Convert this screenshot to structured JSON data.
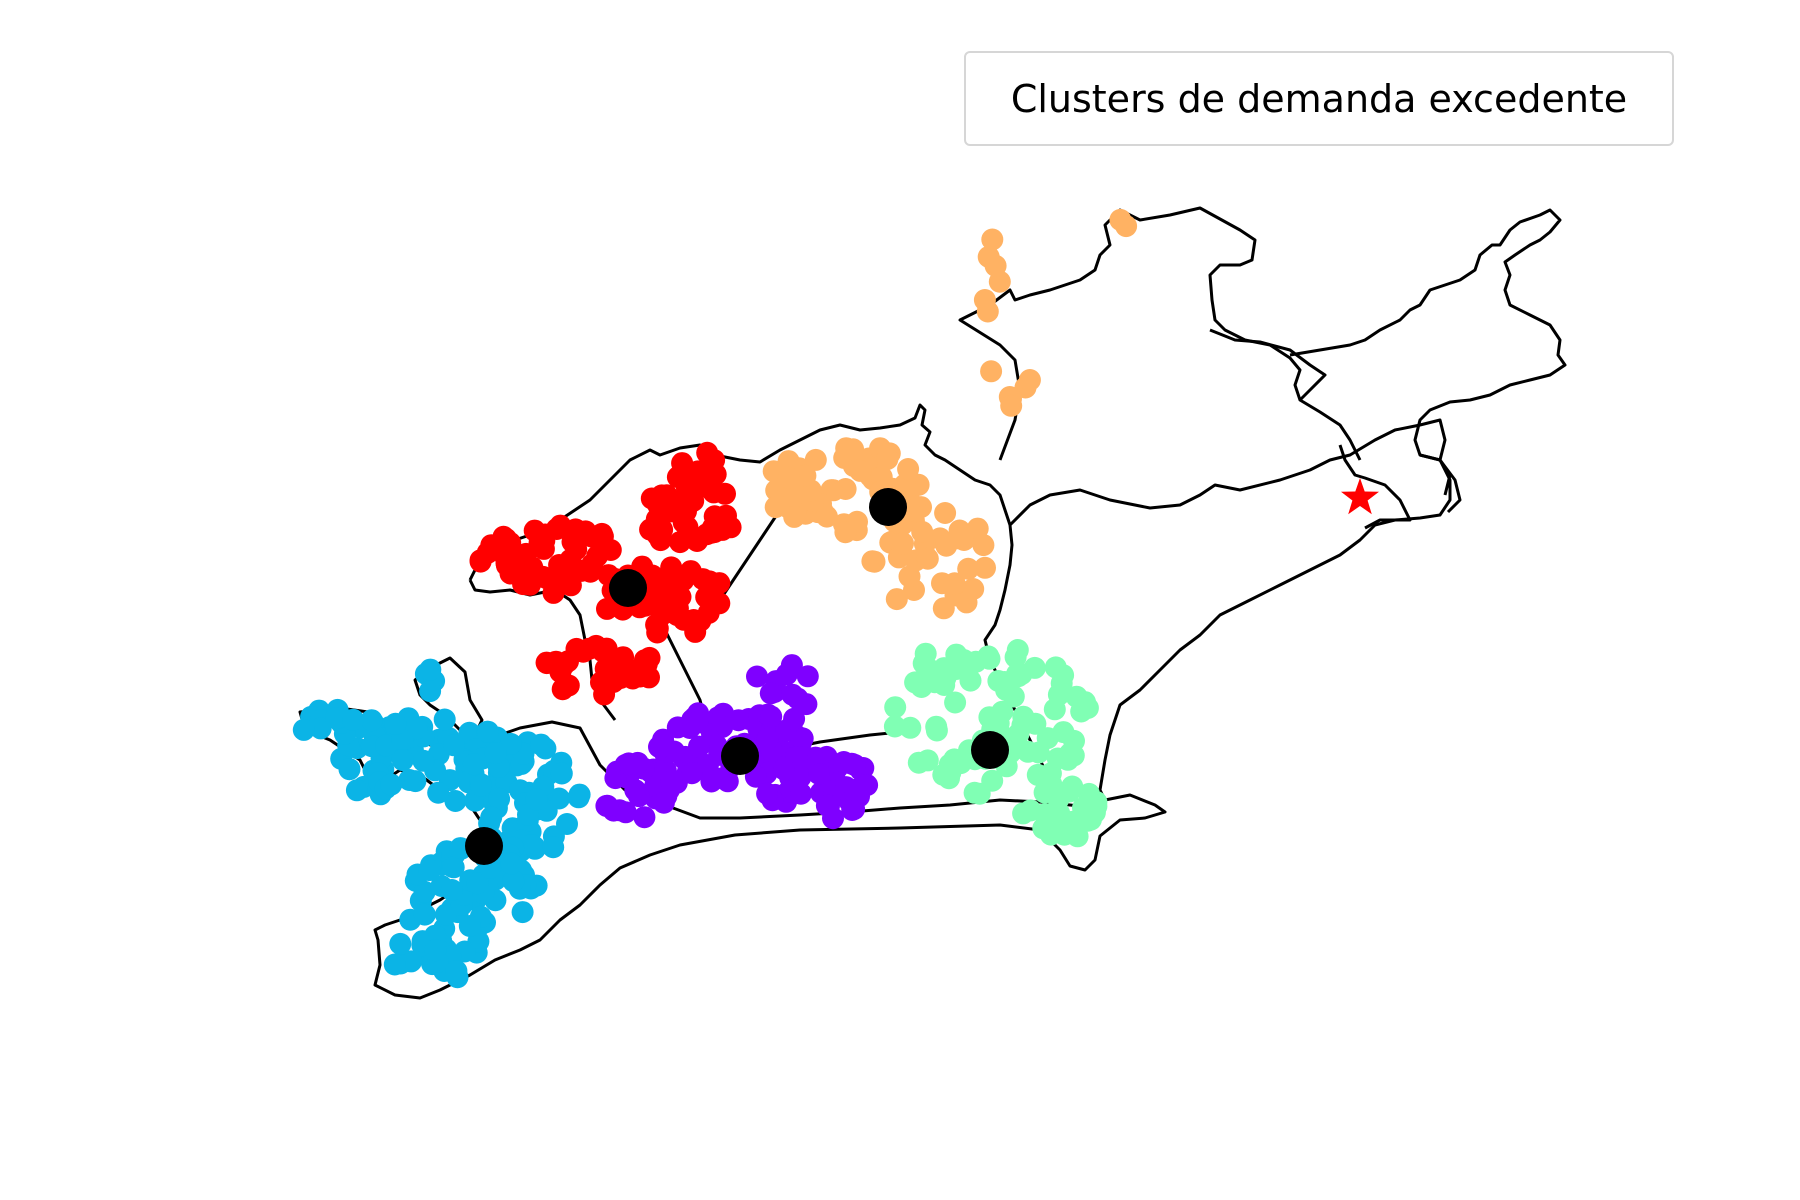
{
  "legend": {
    "title": "Clusters de demanda excedente"
  },
  "map": {
    "boundary_color": "#000000",
    "clusters": [
      {
        "id": "west",
        "color": "#0bb4e6"
      },
      {
        "id": "north-west",
        "color": "#ff0000"
      },
      {
        "id": "central-south",
        "color": "#7f00ff"
      },
      {
        "id": "north-central",
        "color": "#ffb263"
      },
      {
        "id": "east",
        "color": "#80ffb4"
      }
    ],
    "centroid_color": "#000000",
    "marker": {
      "icon": "star-icon",
      "color": "#ff0000"
    }
  }
}
